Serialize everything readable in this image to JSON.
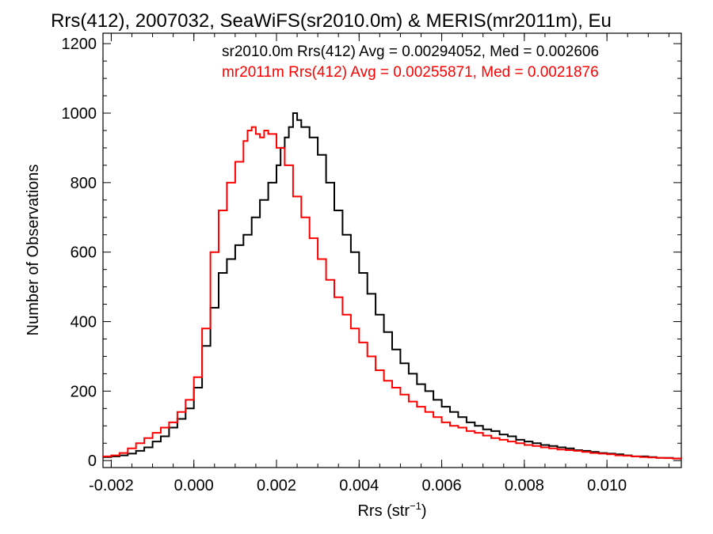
{
  "chart_data": {
    "type": "line",
    "title": "Rrs(412), 2007032, SeaWiFS(sr2010.0m) & MERIS(mr2011m), Eu",
    "xlabel_base": "Rrs (str",
    "xlabel_sup": "−1",
    "xlabel_close": ")",
    "ylabel": "Number of Observations",
    "xlim": [
      -0.0022,
      0.0118
    ],
    "ylim": [
      -20,
      1230
    ],
    "x_ticks": [
      {
        "value": -0.002,
        "label": "-0.002"
      },
      {
        "value": 0.0,
        "label": "0.000"
      },
      {
        "value": 0.002,
        "label": "0.002"
      },
      {
        "value": 0.004,
        "label": "0.004"
      },
      {
        "value": 0.006,
        "label": "0.006"
      },
      {
        "value": 0.008,
        "label": "0.008"
      },
      {
        "value": 0.01,
        "label": "0.010"
      }
    ],
    "y_ticks": [
      {
        "value": 0,
        "label": "0"
      },
      {
        "value": 200,
        "label": "200"
      },
      {
        "value": 400,
        "label": "400"
      },
      {
        "value": 600,
        "label": "600"
      },
      {
        "value": 800,
        "label": "800"
      },
      {
        "value": 1000,
        "label": "1000"
      },
      {
        "value": 1200,
        "label": "1200"
      }
    ],
    "annotations": [
      {
        "text": "sr2010.0m Rrs(412) Avg = 0.00294052, Med = 0.002606",
        "color": "#000000"
      },
      {
        "text": "mr2011m Rrs(412) Avg = 0.00255871, Med = 0.0021876",
        "color": "#ff0000"
      }
    ],
    "series": [
      {
        "color": "#000000",
        "x": [
          -0.0022,
          -0.002,
          -0.0018,
          -0.0016,
          -0.0014,
          -0.0012,
          -0.001,
          -0.0008,
          -0.0006,
          -0.0004,
          -0.0002,
          0.0,
          0.0002,
          0.0004,
          0.0006,
          0.0008,
          0.001,
          0.0012,
          0.0014,
          0.0016,
          0.0018,
          0.002,
          0.0021,
          0.0022,
          0.0023,
          0.0024,
          0.0025,
          0.0026,
          0.0028,
          0.003,
          0.0032,
          0.0034,
          0.0036,
          0.0038,
          0.004,
          0.0042,
          0.0044,
          0.0046,
          0.0048,
          0.005,
          0.0052,
          0.0054,
          0.0056,
          0.0058,
          0.006,
          0.0062,
          0.0064,
          0.0066,
          0.0068,
          0.007,
          0.0072,
          0.0074,
          0.0076,
          0.0078,
          0.008,
          0.0082,
          0.0084,
          0.0086,
          0.0088,
          0.009,
          0.0092,
          0.0094,
          0.0096,
          0.0098,
          0.01,
          0.0102,
          0.0104,
          0.0106,
          0.0108,
          0.011,
          0.0112,
          0.0114,
          0.0116,
          0.0118
        ],
        "y": [
          10,
          12,
          15,
          20,
          28,
          38,
          55,
          70,
          95,
          120,
          150,
          210,
          330,
          440,
          540,
          580,
          620,
          650,
          700,
          750,
          800,
          850,
          900,
          930,
          960,
          1000,
          980,
          960,
          930,
          880,
          800,
          720,
          650,
          600,
          540,
          480,
          420,
          370,
          320,
          280,
          250,
          220,
          200,
          175,
          155,
          140,
          125,
          110,
          100,
          90,
          85,
          75,
          70,
          60,
          55,
          50,
          45,
          42,
          38,
          35,
          30,
          28,
          25,
          22,
          20,
          18,
          15,
          12,
          12,
          10,
          8,
          8,
          6,
          5
        ]
      },
      {
        "color": "#ff0000",
        "x": [
          -0.0022,
          -0.002,
          -0.0018,
          -0.0016,
          -0.0014,
          -0.0012,
          -0.001,
          -0.0008,
          -0.0006,
          -0.0004,
          -0.0002,
          0.0,
          0.0002,
          0.0004,
          0.0006,
          0.0008,
          0.001,
          0.0012,
          0.0013,
          0.0014,
          0.0015,
          0.0016,
          0.0017,
          0.0018,
          0.002,
          0.0022,
          0.0024,
          0.0026,
          0.0028,
          0.003,
          0.0032,
          0.0034,
          0.0036,
          0.0038,
          0.004,
          0.0042,
          0.0044,
          0.0046,
          0.0048,
          0.005,
          0.0052,
          0.0054,
          0.0056,
          0.0058,
          0.006,
          0.0062,
          0.0064,
          0.0066,
          0.0068,
          0.007,
          0.0072,
          0.0074,
          0.0076,
          0.0078,
          0.008,
          0.0082,
          0.0084,
          0.0086,
          0.0088,
          0.009,
          0.0092,
          0.0094,
          0.0096,
          0.0098,
          0.01,
          0.0102,
          0.0104,
          0.0106,
          0.0108,
          0.011,
          0.0112,
          0.0114,
          0.0116,
          0.0118
        ],
        "y": [
          12,
          15,
          22,
          35,
          50,
          65,
          80,
          95,
          110,
          140,
          175,
          240,
          380,
          600,
          720,
          800,
          860,
          920,
          950,
          960,
          940,
          930,
          950,
          940,
          900,
          850,
          760,
          700,
          640,
          580,
          520,
          470,
          420,
          380,
          340,
          300,
          260,
          230,
          210,
          190,
          170,
          155,
          140,
          125,
          110,
          100,
          95,
          85,
          80,
          72,
          65,
          60,
          55,
          50,
          45,
          42,
          38,
          35,
          32,
          30,
          28,
          25,
          22,
          20,
          18,
          15,
          14,
          12,
          10,
          9,
          8,
          7,
          6,
          5
        ]
      }
    ]
  }
}
